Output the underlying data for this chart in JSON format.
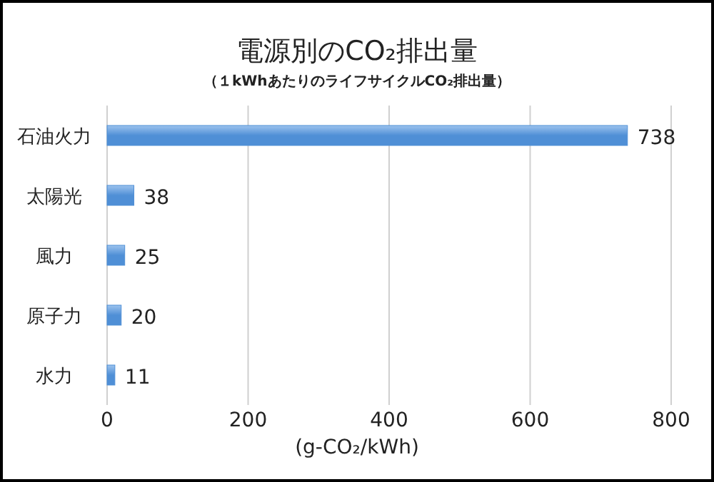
{
  "chart_data": {
    "type": "bar",
    "orientation": "horizontal",
    "title": "電源別のCO₂排出量",
    "subtitle": "（１kWhあたりのライフサイクルCO₂排出量）",
    "xlabel": "(g-CO₂/kWh)",
    "categories": [
      "石油火力",
      "太陽光",
      "風力",
      "原子力",
      "水力"
    ],
    "values": [
      738,
      38,
      25,
      20,
      11
    ],
    "color": "#4f8fd6",
    "xlim": [
      0,
      800
    ],
    "xticks": [
      0,
      200,
      400,
      600,
      800
    ],
    "grid": "x",
    "data_labels": true
  }
}
